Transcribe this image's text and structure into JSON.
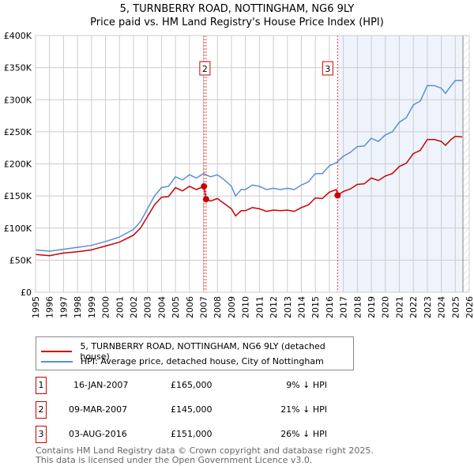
{
  "title": "5, TURNBERRY ROAD, NOTTINGHAM, NG6 9LY",
  "subtitle": "Price paid vs. HM Land Registry's House Price Index (HPI)",
  "chart_data": {
    "type": "line",
    "xlim": [
      1995,
      2026
    ],
    "ylim": [
      0,
      400000
    ],
    "x_ticks": [
      "1995",
      "1996",
      "1997",
      "1998",
      "1999",
      "2000",
      "2001",
      "2002",
      "2003",
      "2004",
      "2005",
      "2006",
      "2007",
      "2008",
      "2009",
      "2010",
      "2011",
      "2012",
      "2013",
      "2014",
      "2015",
      "2016",
      "2017",
      "2018",
      "2019",
      "2020",
      "2021",
      "2022",
      "2023",
      "2024",
      "2025",
      "2026"
    ],
    "y_ticks": [
      {
        "v": 0,
        "l": "£0"
      },
      {
        "v": 50000,
        "l": "£50K"
      },
      {
        "v": 100000,
        "l": "£100K"
      },
      {
        "v": 150000,
        "l": "£150K"
      },
      {
        "v": 200000,
        "l": "£200K"
      },
      {
        "v": 250000,
        "l": "£250K"
      },
      {
        "v": 300000,
        "l": "£300K"
      },
      {
        "v": 350000,
        "l": "£350K"
      },
      {
        "v": 400000,
        "l": "£400K"
      }
    ],
    "grid": true,
    "shaded_from": 2016.59,
    "hatched_from": 2025.55,
    "series": [
      {
        "name": "5, TURNBERRY ROAD, NOTTINGHAM, NG6 9LY (detached house)",
        "color": "#cc0000",
        "x": [
          1995,
          1996,
          1997,
          1998,
          1999,
          2000,
          2001,
          2002,
          2002.5,
          2003,
          2003.5,
          2004,
          2004.5,
          2005,
          2005.5,
          2006,
          2006.5,
          2007.04,
          2007.19,
          2007.5,
          2008,
          2008.5,
          2009,
          2009.3,
          2009.7,
          2010,
          2010.5,
          2011,
          2011.5,
          2012,
          2012.5,
          2013,
          2013.5,
          2014,
          2014.5,
          2015,
          2015.5,
          2016,
          2016.5,
          2016.59,
          2017,
          2017.5,
          2018,
          2018.5,
          2019,
          2019.5,
          2020,
          2020.5,
          2021,
          2021.5,
          2022,
          2022.5,
          2023,
          2023.5,
          2024,
          2024.3,
          2024.7,
          2025,
          2025.5
        ],
        "y": [
          59,
          57,
          61,
          63,
          66,
          72,
          78,
          89,
          100,
          118,
          136,
          148,
          149,
          163,
          158,
          165,
          160,
          165,
          145,
          142,
          146,
          138,
          130,
          119,
          127,
          127,
          132,
          130,
          126,
          128,
          127,
          128,
          126,
          132,
          136,
          147,
          146,
          156,
          160,
          151,
          157,
          161,
          168,
          169,
          178,
          174,
          181,
          185,
          196,
          201,
          216,
          221,
          238,
          238,
          235,
          229,
          238,
          243,
          242
        ]
      },
      {
        "name": "HPI: Average price, detached house, City of Nottingham",
        "color": "#5b8fd6",
        "x": [
          1995,
          1996,
          1997,
          1998,
          1999,
          2000,
          2001,
          2002,
          2002.5,
          2003,
          2003.5,
          2004,
          2004.5,
          2005,
          2005.5,
          2006,
          2006.5,
          2007,
          2007.5,
          2008,
          2008.5,
          2009,
          2009.3,
          2009.7,
          2010,
          2010.5,
          2011,
          2011.5,
          2012,
          2012.5,
          2013,
          2013.5,
          2014,
          2014.5,
          2015,
          2015.5,
          2016,
          2016.5,
          2017,
          2017.5,
          2018,
          2018.5,
          2019,
          2019.5,
          2020,
          2020.5,
          2021,
          2021.5,
          2022,
          2022.5,
          2023,
          2023.5,
          2024,
          2024.3,
          2024.7,
          2025,
          2025.5
        ],
        "y": [
          66,
          64,
          67,
          70,
          73,
          79,
          86,
          98,
          110,
          130,
          150,
          163,
          165,
          180,
          175,
          183,
          178,
          185,
          180,
          183,
          175,
          165,
          150,
          160,
          160,
          167,
          165,
          160,
          162,
          160,
          162,
          160,
          167,
          172,
          185,
          185,
          197,
          202,
          212,
          218,
          227,
          228,
          240,
          235,
          245,
          250,
          265,
          272,
          292,
          298,
          322,
          322,
          318,
          310,
          322,
          330,
          330
        ]
      }
    ],
    "y_unit": 1000,
    "sales": [
      {
        "label": "1",
        "x": 2007.04,
        "y": 165000
      },
      {
        "label": "2",
        "x": 2007.19,
        "y": 145000
      },
      {
        "label": "3",
        "x": 2016.59,
        "y": 151000
      }
    ],
    "markers_shown": [
      "2",
      "3"
    ]
  },
  "legend": {
    "red": "5, TURNBERRY ROAD, NOTTINGHAM, NG6 9LY (detached house)",
    "blue": "HPI: Average price, detached house, City of Nottingham"
  },
  "transactions": [
    {
      "n": "1",
      "date": "16-JAN-2007",
      "price": "£165,000",
      "hpi": "9% ↓ HPI"
    },
    {
      "n": "2",
      "date": "09-MAR-2007",
      "price": "£145,000",
      "hpi": "21% ↓ HPI"
    },
    {
      "n": "3",
      "date": "03-AUG-2016",
      "price": "£151,000",
      "hpi": "26% ↓ HPI"
    }
  ],
  "footer": {
    "line1": "Contains HM Land Registry data © Crown copyright and database right 2025.",
    "line2": "This data is licensed under the Open Government Licence v3.0."
  }
}
